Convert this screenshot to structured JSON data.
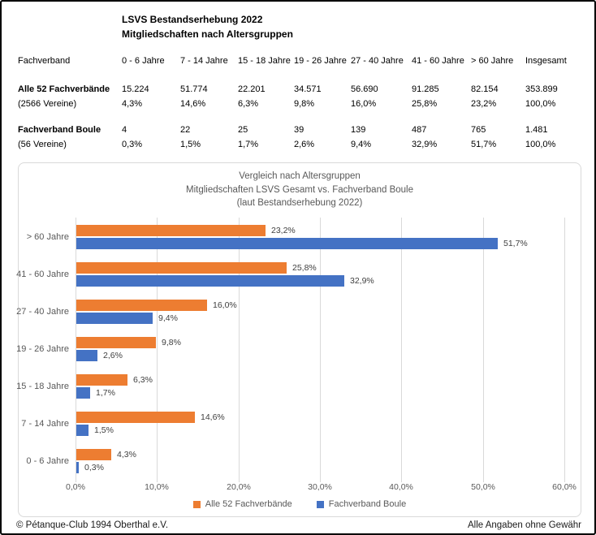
{
  "header": {
    "title_line1": "LSVS Bestandserhebung 2022",
    "title_line2": "Mitgliedschaften nach Altersgruppen"
  },
  "table": {
    "headers": [
      "Fachverband",
      "0 - 6 Jahre",
      "7 - 14 Jahre",
      "15 - 18 Jahre",
      "19 - 26 Jahre",
      "27 - 40 Jahre",
      "41 - 60 Jahre",
      "> 60 Jahre",
      "Insgesamt"
    ],
    "rows": [
      {
        "label": "Alle 52 Fachverbände",
        "bold": true,
        "group_start": true,
        "values": [
          "15.224",
          "51.774",
          "22.201",
          "34.571",
          "56.690",
          "91.285",
          "82.154",
          "353.899"
        ]
      },
      {
        "label": "(2566 Vereine)",
        "bold": false,
        "group_start": false,
        "values": [
          "4,3%",
          "14,6%",
          "6,3%",
          "9,8%",
          "16,0%",
          "25,8%",
          "23,2%",
          "100,0%"
        ]
      },
      {
        "label": "Fachverband Boule",
        "bold": true,
        "group_start": true,
        "values": [
          "4",
          "22",
          "25",
          "39",
          "139",
          "487",
          "765",
          "1.481"
        ]
      },
      {
        "label": "(56 Vereine)",
        "bold": false,
        "group_start": false,
        "values": [
          "0,3%",
          "1,5%",
          "1,7%",
          "2,6%",
          "9,4%",
          "32,9%",
          "51,7%",
          "100,0%"
        ]
      }
    ]
  },
  "chart_data": {
    "type": "bar",
    "orientation": "horizontal",
    "title_lines": [
      "Vergleich nach Altersgruppen",
      "Mitgliedschaften LSVS Gesamt vs. Fachverband Boule",
      "(laut Bestandserhebung 2022)"
    ],
    "categories": [
      "> 60 Jahre",
      "41 - 60 Jahre",
      "27 - 40 Jahre",
      "19 - 26 Jahre",
      "15 - 18 Jahre",
      "7 - 14 Jahre",
      "0 - 6 Jahre"
    ],
    "series": [
      {
        "name": "Alle 52 Fachverbände",
        "color": "#ED7D31",
        "values": [
          23.2,
          25.8,
          16.0,
          9.8,
          6.3,
          14.6,
          4.3
        ],
        "labels": [
          "23,2%",
          "25,8%",
          "16,0%",
          "9,8%",
          "6,3%",
          "14,6%",
          "4,3%"
        ]
      },
      {
        "name": "Fachverband Boule",
        "color": "#4472C4",
        "values": [
          51.7,
          32.9,
          9.4,
          2.6,
          1.7,
          1.5,
          0.3
        ],
        "labels": [
          "51,7%",
          "32,9%",
          "9,4%",
          "2,6%",
          "1,7%",
          "1,5%",
          "0,3%"
        ]
      }
    ],
    "x_axis": {
      "min": 0,
      "max": 60,
      "tick_step": 10,
      "tick_labels": [
        "0,0%",
        "10,0%",
        "20,0%",
        "30,0%",
        "40,0%",
        "50,0%",
        "60,0%"
      ]
    },
    "grid": true,
    "legend_position": "bottom"
  },
  "footer": {
    "left": "© Pétanque-Club 1994 Oberthal e.V.",
    "right": "Alle Angaben ohne Gewähr"
  },
  "colors": {
    "series1": "#ED7D31",
    "series2": "#4472C4",
    "gridline": "#D9D9D9",
    "axis_text": "#595959",
    "data_label": "#404040",
    "chart_border": "#D9D9D9",
    "page_border": "#000000"
  }
}
